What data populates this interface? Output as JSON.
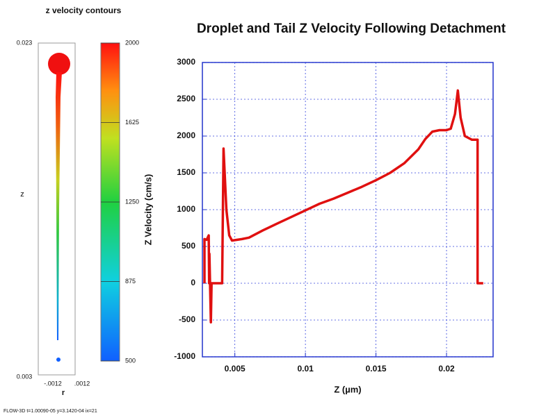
{
  "contour_panel": {
    "title": "z velocity contours",
    "z_top": "0.023",
    "z_bottom": "0.003",
    "z_label": "z",
    "r_left": "-.0012",
    "r_right": ".0012",
    "r_label": "r",
    "colorbar": {
      "clim": [
        500,
        2000
      ],
      "ticks": [
        2000,
        1625,
        1250,
        875,
        500
      ]
    },
    "footer": "FLOW-3D t=1.00090-05 y=3.1420-04 ix=21"
  },
  "chart_data": {
    "type": "line",
    "title": "Droplet and Tail Z Velocity Following Detachment",
    "x_label": "Z (µm)",
    "y_label": "Z Velocity (cm/s)",
    "color": "#e01010",
    "x": [
      0.00285,
      0.00285,
      0.003,
      0.00315,
      0.00318,
      0.0032,
      0.0033,
      0.00335,
      0.0041,
      0.0042,
      0.0044,
      0.0046,
      0.0048,
      0.0055,
      0.006,
      0.007,
      0.008,
      0.009,
      0.01,
      0.011,
      0.012,
      0.013,
      0.014,
      0.015,
      0.016,
      0.017,
      0.018,
      0.0185,
      0.019,
      0.0195,
      0.02,
      0.0203,
      0.0206,
      0.0208,
      0.021,
      0.0213,
      0.0218,
      0.0222,
      0.0222,
      0.0226
    ],
    "values": [
      0,
      600,
      590,
      650,
      0,
      400,
      -530,
      0,
      0,
      1830,
      1000,
      650,
      580,
      600,
      620,
      720,
      810,
      900,
      990,
      1080,
      1150,
      1230,
      1310,
      1400,
      1500,
      1630,
      1820,
      1960,
      2060,
      2080,
      2080,
      2100,
      2300,
      2620,
      2250,
      2000,
      1950,
      1950,
      0,
      0
    ],
    "xlim": [
      0.0027,
      0.0233
    ],
    "ylim": [
      -1000,
      3000
    ],
    "xticks": [
      0.005,
      0.01,
      0.015,
      0.02
    ],
    "yticks": [
      -1000,
      -500,
      0,
      500,
      1000,
      1500,
      2000,
      2500,
      3000
    ],
    "grid": true
  }
}
